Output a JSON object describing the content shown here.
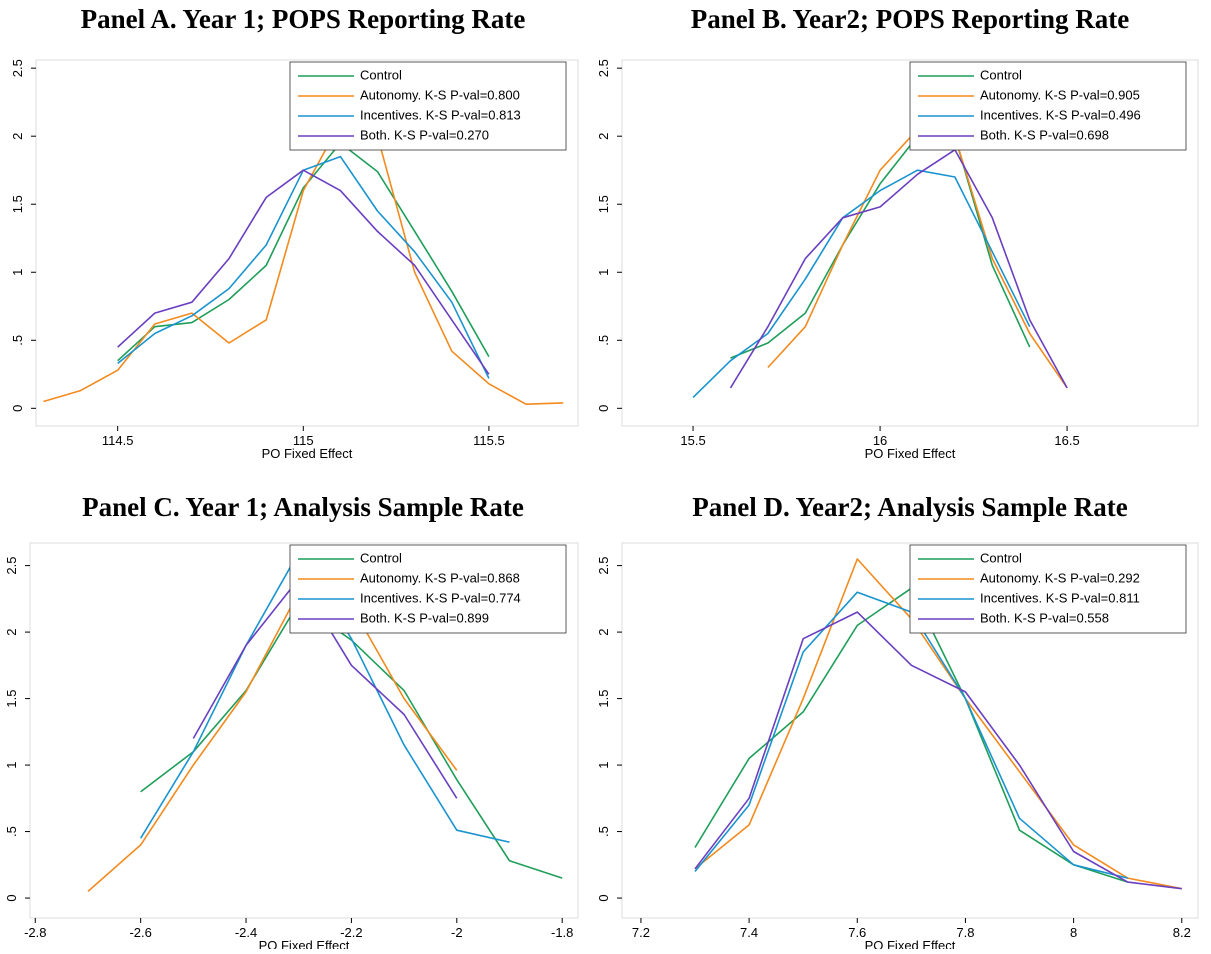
{
  "chart_data": [
    {
      "type": "line",
      "title": "Panel A. Year 1; POPS Reporting Rate",
      "xlabel": "PO Fixed Effect",
      "x": [
        114.3,
        114.4,
        114.5,
        114.6,
        114.7,
        114.8,
        114.9,
        115.0,
        115.1,
        115.2,
        115.3,
        115.4,
        115.5,
        115.6,
        115.7
      ],
      "series": [
        {
          "name": "Control",
          "color": "#1f9e5a",
          "values": [
            null,
            null,
            0.35,
            0.6,
            0.63,
            0.8,
            1.05,
            1.62,
            1.95,
            1.74,
            1.3,
            0.86,
            0.38,
            null,
            null
          ]
        },
        {
          "name": "Autonomy. K-S P-val=0.800",
          "color": "#f28a1e",
          "values": [
            0.05,
            0.13,
            0.28,
            0.62,
            0.7,
            0.48,
            0.65,
            1.6,
            2.1,
            2.0,
            1.0,
            0.42,
            0.18,
            0.03,
            0.04
          ]
        },
        {
          "name": "Incentives. K-S P-val=0.813",
          "color": "#1a94cf",
          "values": [
            null,
            null,
            0.33,
            0.55,
            0.68,
            0.88,
            1.2,
            1.75,
            1.85,
            1.45,
            1.15,
            0.78,
            0.22,
            null,
            null
          ]
        },
        {
          "name": "Both. K-S P-val=0.270",
          "color": "#6a3fc0",
          "values": [
            null,
            null,
            0.45,
            0.7,
            0.78,
            1.1,
            1.55,
            1.75,
            1.6,
            1.3,
            1.05,
            0.65,
            0.25,
            null,
            null
          ]
        }
      ],
      "xlim": [
        114.28,
        115.74
      ],
      "ylim": [
        -0.13,
        2.56
      ],
      "xticks": [
        114.5,
        115,
        115.5
      ],
      "yticks": [
        0,
        {
          "value": 0.5,
          "label": ".5"
        },
        1,
        {
          "value": 1.5,
          "label": "1.5"
        },
        2,
        {
          "value": 2.5,
          "label": "2.5"
        }
      ],
      "grid": false,
      "legend": "top right"
    },
    {
      "type": "line",
      "title": "Panel B. Year2; POPS Reporting Rate",
      "xlabel": "PO Fixed Effect",
      "x": [
        15.5,
        15.6,
        15.7,
        15.8,
        15.9,
        16.0,
        16.1,
        16.2,
        16.3,
        16.4,
        16.5
      ],
      "series": [
        {
          "name": "Control",
          "color": "#1f9e5a",
          "values": [
            null,
            0.37,
            0.48,
            0.7,
            1.2,
            1.65,
            2.0,
            2.0,
            1.05,
            0.45,
            null
          ]
        },
        {
          "name": "Autonomy. K-S P-val=0.905",
          "color": "#f28a1e",
          "values": [
            null,
            null,
            0.3,
            0.6,
            1.2,
            1.75,
            2.05,
            2.0,
            1.1,
            0.55,
            0.15
          ]
        },
        {
          "name": "Incentives. K-S P-val=0.496",
          "color": "#1a94cf",
          "values": [
            0.08,
            0.35,
            0.55,
            0.95,
            1.4,
            1.6,
            1.75,
            1.7,
            1.15,
            0.6,
            null
          ]
        },
        {
          "name": "Both. K-S P-val=0.698",
          "color": "#6a3fc0",
          "values": [
            null,
            0.15,
            0.6,
            1.1,
            1.4,
            1.48,
            1.72,
            1.9,
            1.4,
            0.65,
            0.15
          ]
        }
      ],
      "xlim": [
        15.31,
        16.85
      ],
      "ylim": [
        -0.13,
        2.56
      ],
      "xticks": [
        15.5,
        16,
        16.5
      ],
      "yticks": [
        0,
        {
          "value": 0.5,
          "label": ".5"
        },
        1,
        {
          "value": 1.5,
          "label": "1.5"
        },
        2,
        {
          "value": 2.5,
          "label": "2.5"
        }
      ],
      "grid": false,
      "legend": "top right"
    },
    {
      "type": "line",
      "title": "Panel C. Year 1; Analysis Sample Rate",
      "xlabel": "PO Fixed Effect",
      "x": [
        -2.8,
        -2.7,
        -2.6,
        -2.5,
        -2.4,
        -2.3,
        -2.2,
        -2.1,
        -2.0,
        -1.9,
        -1.8
      ],
      "series": [
        {
          "name": "Control",
          "color": "#1f9e5a",
          "values": [
            null,
            null,
            0.8,
            1.1,
            1.56,
            2.22,
            1.94,
            1.56,
            0.89,
            0.28,
            0.15
          ]
        },
        {
          "name": "Autonomy. K-S P-val=0.868",
          "color": "#f28a1e",
          "values": [
            null,
            0.05,
            0.4,
            1.0,
            1.55,
            2.3,
            2.2,
            1.5,
            0.96,
            null,
            null
          ]
        },
        {
          "name": "Incentives. K-S P-val=0.774",
          "color": "#1a94cf",
          "values": [
            null,
            null,
            0.45,
            1.1,
            1.9,
            2.6,
            1.95,
            1.15,
            0.51,
            0.42,
            null
          ]
        },
        {
          "name": "Both. K-S P-val=0.899",
          "color": "#6a3fc0",
          "values": [
            null,
            null,
            null,
            1.2,
            1.9,
            2.4,
            1.75,
            1.38,
            0.75,
            null,
            null
          ]
        }
      ],
      "xlim": [
        -2.81,
        -1.77
      ],
      "ylim": [
        -0.15,
        2.67
      ],
      "xticks": [
        -2.8,
        -2.6,
        -2.4,
        -2.2,
        -2,
        -1.8
      ],
      "yticks": [
        0,
        {
          "value": 0.5,
          "label": ".5"
        },
        1,
        {
          "value": 1.5,
          "label": "1.5"
        },
        2,
        {
          "value": 2.5,
          "label": "2.5"
        }
      ],
      "grid": false,
      "legend": "top right"
    },
    {
      "type": "line",
      "title": "Panel D. Year2; Analysis Sample Rate",
      "xlabel": "PO Fixed Effect",
      "x": [
        7.2,
        7.3,
        7.4,
        7.5,
        7.6,
        7.7,
        7.8,
        7.9,
        8.0,
        8.1,
        8.2
      ],
      "series": [
        {
          "name": "Control",
          "color": "#1f9e5a",
          "values": [
            null,
            0.38,
            1.05,
            1.4,
            2.05,
            2.33,
            1.5,
            0.51,
            0.25,
            0.12,
            null
          ]
        },
        {
          "name": "Autonomy. K-S P-val=0.292",
          "color": "#f28a1e",
          "values": [
            null,
            0.22,
            0.55,
            1.5,
            2.55,
            2.1,
            1.5,
            0.95,
            0.4,
            0.15,
            0.07
          ]
        },
        {
          "name": "Incentives. K-S P-val=0.811",
          "color": "#1a94cf",
          "values": [
            null,
            0.2,
            0.7,
            1.85,
            2.3,
            2.15,
            1.5,
            0.6,
            0.25,
            0.15,
            null
          ]
        },
        {
          "name": "Both. K-S P-val=0.558",
          "color": "#6a3fc0",
          "values": [
            null,
            0.22,
            0.75,
            1.95,
            2.15,
            1.75,
            1.55,
            1.0,
            0.35,
            0.12,
            0.07
          ]
        }
      ],
      "xlim": [
        7.165,
        8.23
      ],
      "ylim": [
        -0.15,
        2.67
      ],
      "xticks": [
        7.2,
        7.4,
        7.6,
        7.8,
        8,
        8.2
      ],
      "yticks": [
        0,
        {
          "value": 0.5,
          "label": ".5"
        },
        1,
        {
          "value": 1.5,
          "label": "1.5"
        },
        2,
        {
          "value": 2.5,
          "label": "2.5"
        }
      ],
      "grid": false,
      "legend": "top right"
    }
  ]
}
